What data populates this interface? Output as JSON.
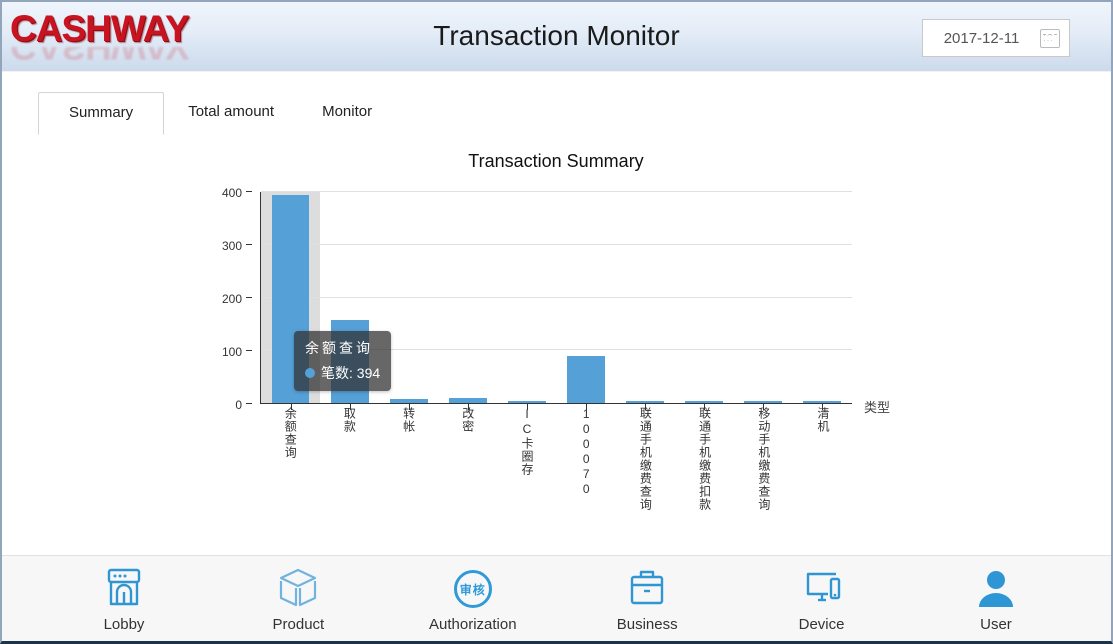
{
  "header": {
    "logo": "CASHWAY",
    "title": "Transaction Monitor",
    "date": "2017-12-11"
  },
  "tabs": [
    {
      "label": "Summary",
      "active": true
    },
    {
      "label": "Total amount",
      "active": false
    },
    {
      "label": "Monitor",
      "active": false
    }
  ],
  "chart_data": {
    "type": "bar",
    "title": "Transaction Summary",
    "categories": [
      "余额查询",
      "取款",
      "转帐",
      "改密",
      "IC卡圈存",
      "100070",
      "联通手机缴费查询",
      "联通手机缴费扣款",
      "移动手机缴费查询",
      "清机"
    ],
    "values": [
      394,
      158,
      8,
      10,
      2,
      90,
      3,
      3,
      4,
      2
    ],
    "series_name": "笔数",
    "xlabel": "类型",
    "ylabel": "",
    "ylim": [
      0,
      400
    ],
    "yticks": [
      0,
      100,
      200,
      300,
      400
    ],
    "grid": true,
    "legend": "none",
    "bar_color": "#55a0d7",
    "highlight_index": 0,
    "highlight_band_color": "#dddddd"
  },
  "tooltip": {
    "title": "余额查询",
    "label": "笔数: 394"
  },
  "nav": {
    "items": [
      {
        "label": "Lobby",
        "icon": "storefront-icon"
      },
      {
        "label": "Product",
        "icon": "cube-icon"
      },
      {
        "label": "Authorization",
        "icon": "approval-seal-icon",
        "seal_text": "审核"
      },
      {
        "label": "Business",
        "icon": "briefcase-icon"
      },
      {
        "label": "Device",
        "icon": "monitor-phone-icon"
      },
      {
        "label": "User",
        "icon": "person-icon"
      }
    ]
  },
  "colors": {
    "logo_red": "#c81420",
    "accent_blue": "#2f96d2",
    "bar_blue": "#55a0d7",
    "header_gradient_top": "#f0f5fc",
    "header_gradient_bottom": "#ccdaec",
    "tooltip_bg": "rgba(50,50,50,0.74)",
    "nav_bg": "#f7f7f8"
  }
}
